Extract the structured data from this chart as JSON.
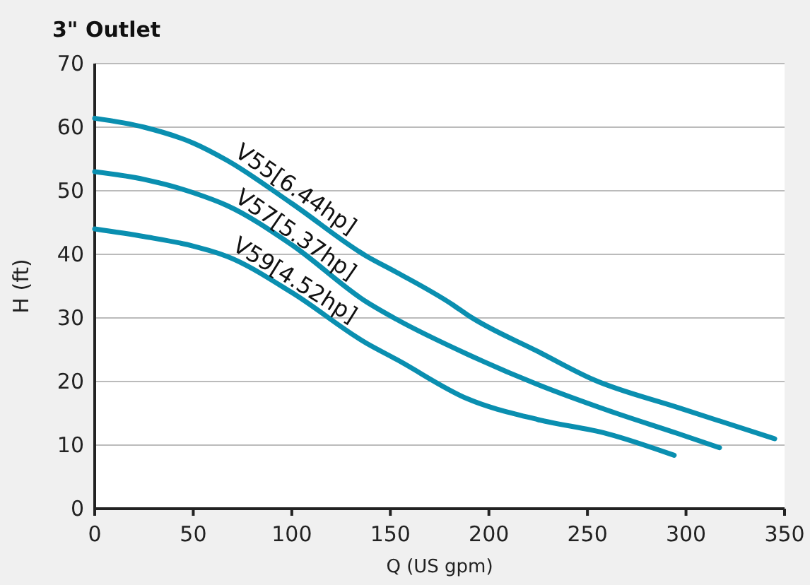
{
  "chart_data": {
    "type": "line",
    "title": "3\" Outlet",
    "xlabel": "Q (US gpm)",
    "ylabel": "H (ft)",
    "xlim": [
      0,
      350
    ],
    "xticks": [
      0,
      50,
      100,
      150,
      200,
      250,
      300,
      350
    ],
    "ylim": [
      0,
      70
    ],
    "yticks": [
      0,
      10,
      20,
      30,
      40,
      50,
      60,
      70
    ],
    "grid": "y",
    "marker": "none",
    "line_style": "solid",
    "series": [
      {
        "name": "V55[6.44hp]",
        "color": "#0a8fb0",
        "x": [
          0,
          25,
          50,
          67,
          100,
          138,
          153,
          182,
          189,
          225,
          253,
          296,
          345
        ],
        "values": [
          61.4,
          60,
          57.5,
          54.8,
          48,
          39.7,
          37.2,
          32,
          30.5,
          24.7,
          20.3,
          15.9,
          11
        ]
      },
      {
        "name": "V57[5.37hp]",
        "color": "#0a8fb0",
        "x": [
          0,
          25,
          50,
          67,
          100,
          138,
          153,
          189,
          225,
          260,
          296,
          317
        ],
        "values": [
          53,
          51.8,
          49.7,
          47.7,
          41.5,
          32.5,
          29.8,
          24.3,
          19.5,
          15.5,
          11.8,
          9.6
        ]
      },
      {
        "name": "V59[4.52hp]",
        "color": "#0a8fb0",
        "x": [
          0,
          25,
          50,
          67,
          100,
          138,
          153,
          189,
          225,
          260,
          294
        ],
        "values": [
          44,
          42.8,
          41.3,
          39.7,
          34,
          26,
          23.5,
          17.3,
          14,
          11.8,
          8.4
        ]
      }
    ]
  }
}
